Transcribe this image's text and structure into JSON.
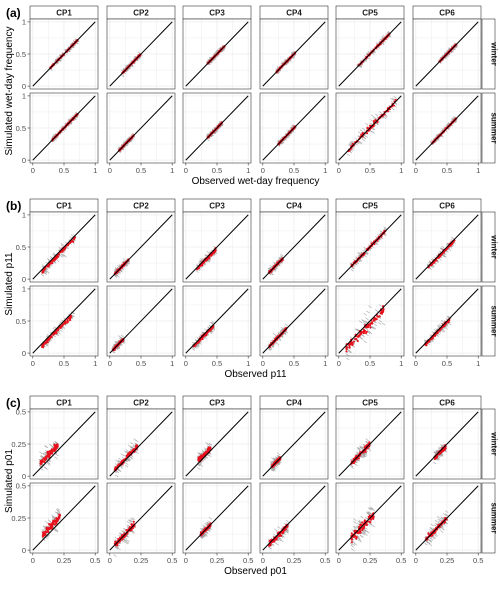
{
  "figure": {
    "colors": {
      "simulated_mean": "#e8101c",
      "spread": "#9a9a9a",
      "identity_line": "#000000",
      "strip_fill": "#ffffff",
      "grid": "#ececec"
    }
  },
  "chart_data": [
    {
      "type": "scatter",
      "panel_label": "(a)",
      "xlabel": "Observed wet-day frequency",
      "ylabel": "Simulated wet-day frequency",
      "columns": [
        "CP1",
        "CP2",
        "CP3",
        "CP4",
        "CP5",
        "CP6"
      ],
      "rows": [
        "winter",
        "summer"
      ],
      "xlim": [
        0,
        1
      ],
      "ylim": [
        0,
        1
      ],
      "x_ticks": [
        0,
        0.5,
        1
      ],
      "x_tick_labels": [
        "0",
        "0.5",
        "1"
      ],
      "y_ticks": [
        0,
        0.5,
        1
      ],
      "y_tick_labels": [
        "0",
        "0.5",
        "1"
      ],
      "identity_line": true,
      "series": [
        {
          "cp": "CP1",
          "season": "winter",
          "x_range": [
            0.28,
            0.72
          ],
          "bias": 0.0,
          "spread": 0.01
        },
        {
          "cp": "CP2",
          "season": "winter",
          "x_range": [
            0.2,
            0.5
          ],
          "bias": 0.0,
          "spread": 0.01
        },
        {
          "cp": "CP3",
          "season": "winter",
          "x_range": [
            0.35,
            0.62
          ],
          "bias": 0.0,
          "spread": 0.01
        },
        {
          "cp": "CP4",
          "season": "winter",
          "x_range": [
            0.22,
            0.52
          ],
          "bias": 0.0,
          "spread": 0.01
        },
        {
          "cp": "CP5",
          "season": "winter",
          "x_range": [
            0.3,
            0.82
          ],
          "bias": 0.0,
          "spread": 0.015
        },
        {
          "cp": "CP6",
          "season": "winter",
          "x_range": [
            0.38,
            0.65
          ],
          "bias": 0.0,
          "spread": 0.01
        },
        {
          "cp": "CP1",
          "season": "summer",
          "x_range": [
            0.3,
            0.72
          ],
          "bias": 0.0,
          "spread": 0.012
        },
        {
          "cp": "CP2",
          "season": "summer",
          "x_range": [
            0.15,
            0.38
          ],
          "bias": 0.0,
          "spread": 0.01
        },
        {
          "cp": "CP3",
          "season": "summer",
          "x_range": [
            0.35,
            0.58
          ],
          "bias": 0.0,
          "spread": 0.01
        },
        {
          "cp": "CP4",
          "season": "summer",
          "x_range": [
            0.25,
            0.52
          ],
          "bias": 0.0,
          "spread": 0.012
        },
        {
          "cp": "CP5",
          "season": "summer",
          "x_range": [
            0.15,
            0.92
          ],
          "bias": 0.0,
          "spread": 0.045
        },
        {
          "cp": "CP6",
          "season": "summer",
          "x_range": [
            0.25,
            0.65
          ],
          "bias": 0.0,
          "spread": 0.012
        }
      ]
    },
    {
      "type": "scatter",
      "panel_label": "(b)",
      "xlabel": "Observed p11",
      "ylabel": "Simulated p11",
      "columns": [
        "CP1",
        "CP2",
        "CP3",
        "CP4",
        "CP5",
        "CP6"
      ],
      "rows": [
        "winter",
        "summer"
      ],
      "xlim": [
        0,
        1
      ],
      "ylim": [
        0,
        1
      ],
      "x_ticks": [
        0,
        0.5,
        1
      ],
      "x_tick_labels": [
        "0",
        "0.5",
        "1"
      ],
      "y_ticks": [
        0,
        0.5,
        1
      ],
      "y_tick_labels": [
        "0",
        "0.5",
        "1"
      ],
      "identity_line": true,
      "series": [
        {
          "cp": "CP1",
          "season": "winter",
          "x_range": [
            0.15,
            0.68
          ],
          "bias": -0.03,
          "spread": 0.03
        },
        {
          "cp": "CP2",
          "season": "winter",
          "x_range": [
            0.08,
            0.3
          ],
          "bias": 0.0,
          "spread": 0.02
        },
        {
          "cp": "CP3",
          "season": "winter",
          "x_range": [
            0.18,
            0.48
          ],
          "bias": -0.02,
          "spread": 0.025
        },
        {
          "cp": "CP4",
          "season": "winter",
          "x_range": [
            0.1,
            0.32
          ],
          "bias": 0.0,
          "spread": 0.02
        },
        {
          "cp": "CP5",
          "season": "winter",
          "x_range": [
            0.2,
            0.75
          ],
          "bias": 0.0,
          "spread": 0.025
        },
        {
          "cp": "CP6",
          "season": "winter",
          "x_range": [
            0.2,
            0.62
          ],
          "bias": -0.02,
          "spread": 0.025
        },
        {
          "cp": "CP1",
          "season": "summer",
          "x_range": [
            0.15,
            0.65
          ],
          "bias": -0.04,
          "spread": 0.03
        },
        {
          "cp": "CP2",
          "season": "summer",
          "x_range": [
            0.05,
            0.22
          ],
          "bias": 0.0,
          "spread": 0.02
        },
        {
          "cp": "CP3",
          "season": "summer",
          "x_range": [
            0.12,
            0.45
          ],
          "bias": -0.02,
          "spread": 0.025
        },
        {
          "cp": "CP4",
          "season": "summer",
          "x_range": [
            0.1,
            0.38
          ],
          "bias": 0.0,
          "spread": 0.025
        },
        {
          "cp": "CP5",
          "season": "summer",
          "x_range": [
            0.12,
            0.72
          ],
          "bias": -0.05,
          "spread": 0.07
        },
        {
          "cp": "CP6",
          "season": "summer",
          "x_range": [
            0.15,
            0.55
          ],
          "bias": -0.02,
          "spread": 0.025
        }
      ]
    },
    {
      "type": "scatter",
      "panel_label": "(c)",
      "xlabel": "Observed p01",
      "ylabel": "Simulated p01",
      "columns": [
        "CP1",
        "CP2",
        "CP3",
        "CP4",
        "CP5",
        "CP6"
      ],
      "rows": [
        "winter",
        "summer"
      ],
      "xlim": [
        0,
        0.5
      ],
      "ylim": [
        0,
        0.5
      ],
      "x_ticks": [
        0,
        0.25,
        0.5
      ],
      "x_tick_labels": [
        "0",
        "0.25",
        "0.5"
      ],
      "y_ticks": [
        0,
        0.25,
        0.5
      ],
      "y_tick_labels": [
        "0",
        "0.25",
        "0.5"
      ],
      "identity_line": true,
      "series": [
        {
          "cp": "CP1",
          "season": "winter",
          "x_range": [
            0.06,
            0.2
          ],
          "bias": 0.04,
          "spread": 0.025
        },
        {
          "cp": "CP2",
          "season": "winter",
          "x_range": [
            0.04,
            0.22
          ],
          "bias": 0.01,
          "spread": 0.02
        },
        {
          "cp": "CP3",
          "season": "winter",
          "x_range": [
            0.1,
            0.2
          ],
          "bias": 0.02,
          "spread": 0.02
        },
        {
          "cp": "CP4",
          "season": "winter",
          "x_range": [
            0.07,
            0.14
          ],
          "bias": 0.0,
          "spread": 0.015
        },
        {
          "cp": "CP5",
          "season": "winter",
          "x_range": [
            0.1,
            0.25
          ],
          "bias": 0.0,
          "spread": 0.02
        },
        {
          "cp": "CP6",
          "season": "winter",
          "x_range": [
            0.15,
            0.24
          ],
          "bias": -0.01,
          "spread": 0.015
        },
        {
          "cp": "CP1",
          "season": "summer",
          "x_range": [
            0.08,
            0.22
          ],
          "bias": 0.04,
          "spread": 0.025
        },
        {
          "cp": "CP2",
          "season": "summer",
          "x_range": [
            0.04,
            0.2
          ],
          "bias": 0.0,
          "spread": 0.025
        },
        {
          "cp": "CP3",
          "season": "summer",
          "x_range": [
            0.12,
            0.2
          ],
          "bias": 0.0,
          "spread": 0.015
        },
        {
          "cp": "CP4",
          "season": "summer",
          "x_range": [
            0.05,
            0.2
          ],
          "bias": -0.01,
          "spread": 0.02
        },
        {
          "cp": "CP5",
          "season": "summer",
          "x_range": [
            0.1,
            0.28
          ],
          "bias": -0.01,
          "spread": 0.04
        },
        {
          "cp": "CP6",
          "season": "summer",
          "x_range": [
            0.08,
            0.25
          ],
          "bias": 0.0,
          "spread": 0.02
        }
      ]
    }
  ]
}
